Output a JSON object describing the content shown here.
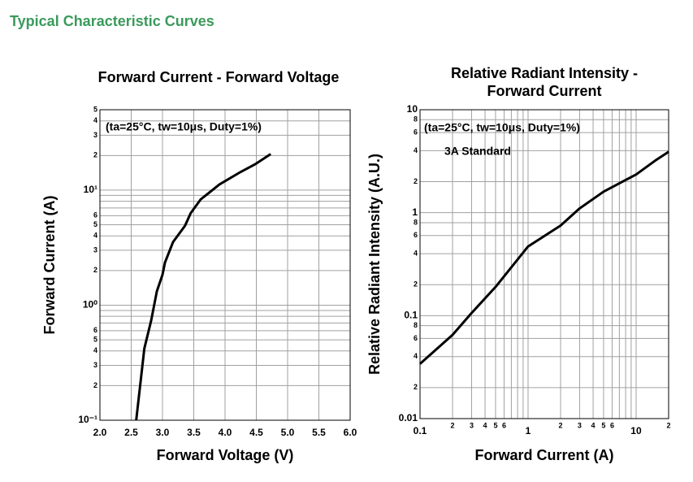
{
  "title": "Typical Characteristic Curves",
  "chart_data": [
    {
      "type": "line",
      "title": [
        "Forward Current - Forward Voltage"
      ],
      "xlabel": "Forward Voltage (V)",
      "ylabel": "Forward Current (A)",
      "annotations": [
        "(ta=25°C, tw=10μs, Duty=1%)"
      ],
      "xlog": false,
      "ylog": true,
      "grid": true,
      "xlim": [
        2,
        6
      ],
      "ylim": [
        0.1,
        50
      ],
      "xticks": [
        {
          "value": 2,
          "label": "2.0"
        },
        2.5,
        {
          "value": 3,
          "label": "3.0"
        },
        3.5,
        {
          "value": 4,
          "label": "4.0"
        },
        4.5,
        {
          "value": 5,
          "label": "5.0"
        },
        5.5,
        {
          "value": 6,
          "label": "6.0"
        }
      ],
      "yticks": [
        {
          "value": 0.1,
          "label": "10⁻¹"
        },
        {
          "value": 0.2,
          "label": "2"
        },
        {
          "value": 0.3,
          "label": "3"
        },
        {
          "value": 0.4,
          "label": "4"
        },
        {
          "value": 0.5,
          "label": "5"
        },
        {
          "value": 0.6,
          "label": "6"
        },
        {
          "value": 0.7,
          "label": null
        },
        {
          "value": 0.8,
          "label": null
        },
        {
          "value": 0.9,
          "label": null
        },
        {
          "value": 1,
          "label": "10⁰"
        },
        2,
        3,
        4,
        5,
        6,
        {
          "value": 7,
          "label": null
        },
        {
          "value": 8,
          "label": null
        },
        {
          "value": 9,
          "label": null
        },
        {
          "value": 10,
          "label": "10¹"
        },
        {
          "value": 20,
          "label": "2"
        },
        {
          "value": 30,
          "label": "3"
        },
        {
          "value": 40,
          "label": "4"
        },
        {
          "value": 50,
          "label": "5"
        }
      ],
      "series": [
        {
          "name": null,
          "color": "#000000",
          "x": [
            2.58,
            2.71,
            2.82,
            2.91,
            3.0,
            3.04,
            3.17,
            3.36,
            3.45,
            3.61,
            3.91,
            4.25,
            4.49,
            4.73
          ],
          "values": [
            0.1,
            0.42,
            0.74,
            1.32,
            1.84,
            2.35,
            3.55,
            4.9,
            6.3,
            8.3,
            11.2,
            14.4,
            16.9,
            20.6
          ]
        }
      ]
    },
    {
      "type": "line",
      "title": [
        "Relative Radiant Intensity -",
        "Forward Current"
      ],
      "xlabel": "Forward Current (A)",
      "ylabel": "Relative Radiant Intensity (A.U.)",
      "annotations": [
        "(ta=25°C, tw=10μs, Duty=1%)",
        "3A Standard"
      ],
      "xlog": true,
      "ylog": true,
      "grid": true,
      "xlim": [
        0.1,
        20
      ],
      "ylim": [
        0.01,
        10
      ],
      "xticks": [
        0.1,
        {
          "value": 0.2,
          "label": "2"
        },
        {
          "value": 0.3,
          "label": "3"
        },
        {
          "value": 0.4,
          "label": "4"
        },
        {
          "value": 0.5,
          "label": "5"
        },
        {
          "value": 0.6,
          "label": "6"
        },
        {
          "value": 0.7,
          "label": null
        },
        {
          "value": 0.8,
          "label": null
        },
        {
          "value": 0.9,
          "label": null
        },
        1,
        2,
        3,
        4,
        5,
        6,
        {
          "value": 7,
          "label": null
        },
        {
          "value": 8,
          "label": null
        },
        {
          "value": 9,
          "label": null
        },
        10,
        {
          "value": 20,
          "label": "2"
        }
      ],
      "yticks": [
        0.01,
        {
          "value": 0.02,
          "label": "2"
        },
        {
          "value": 0.04,
          "label": "4"
        },
        {
          "value": 0.06,
          "label": "6"
        },
        {
          "value": 0.08,
          "label": "8"
        },
        0.1,
        {
          "value": 0.2,
          "label": "2"
        },
        {
          "value": 0.4,
          "label": "4"
        },
        {
          "value": 0.6,
          "label": "6"
        },
        {
          "value": 0.8,
          "label": "8"
        },
        1,
        2,
        4,
        6,
        8,
        10
      ],
      "series": [
        {
          "name": null,
          "color": "#000000",
          "x": [
            0.1,
            0.2,
            0.3,
            0.5,
            1,
            2,
            3,
            5,
            10,
            15,
            20
          ],
          "values": [
            0.034,
            0.065,
            0.106,
            0.19,
            0.47,
            0.75,
            1.1,
            1.6,
            2.35,
            3.2,
            3.9
          ]
        }
      ]
    }
  ]
}
